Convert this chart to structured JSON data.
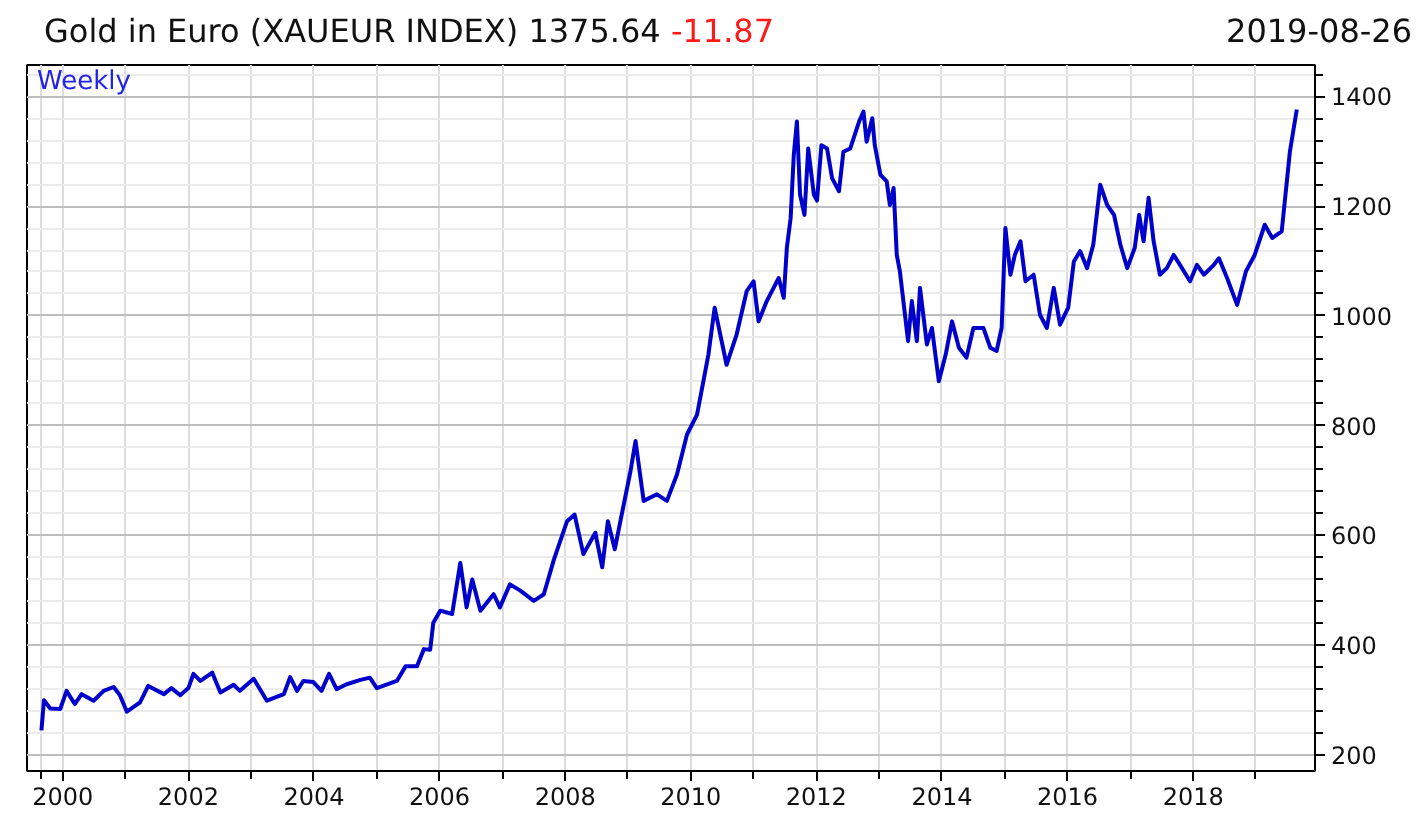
{
  "chart_data": {
    "type": "line",
    "title": "Gold in Euro (XAUEUR INDEX) 1375.64",
    "annotations": [
      "-11.87",
      "2019-08-26",
      "Weekly"
    ],
    "x": [
      1999.66,
      1999.7,
      1999.8,
      1999.96,
      2000.06,
      2000.19,
      2000.3,
      2000.49,
      2000.65,
      2000.81,
      2000.91,
      2001.02,
      2001.23,
      2001.36,
      2001.61,
      2001.73,
      2001.87,
      2002.0,
      2002.08,
      2002.19,
      2002.38,
      2002.51,
      2002.72,
      2002.82,
      2003.04,
      2003.25,
      2003.52,
      2003.62,
      2003.73,
      2003.83,
      2003.99,
      2004.12,
      2004.24,
      2004.36,
      2004.52,
      2004.74,
      2004.89,
      2005.0,
      2005.32,
      2005.46,
      2005.64,
      2005.75,
      2005.85,
      2005.9,
      2006.01,
      2006.2,
      2006.33,
      2006.43,
      2006.52,
      2006.65,
      2006.86,
      2006.96,
      2007.12,
      2007.28,
      2007.5,
      2007.66,
      2007.82,
      2008.03,
      2008.15,
      2008.29,
      2008.48,
      2008.59,
      2008.68,
      2008.79,
      2008.9,
      2009.04,
      2009.12,
      2009.25,
      2009.46,
      2009.62,
      2009.78,
      2009.94,
      2010.1,
      2010.28,
      2010.38,
      2010.57,
      2010.73,
      2010.89,
      2011.0,
      2011.08,
      2011.21,
      2011.4,
      2011.48,
      2011.53,
      2011.59,
      2011.64,
      2011.69,
      2011.74,
      2011.81,
      2011.87,
      2011.96,
      2012.01,
      2012.08,
      2012.17,
      2012.25,
      2012.36,
      2012.43,
      2012.54,
      2012.68,
      2012.75,
      2012.8,
      2012.89,
      2012.93,
      2013.02,
      2013.12,
      2013.17,
      2013.23,
      2013.28,
      2013.33,
      2013.46,
      2013.52,
      2013.6,
      2013.65,
      2013.76,
      2013.84,
      2013.95,
      2014.06,
      2014.16,
      2014.27,
      2014.39,
      2014.5,
      2014.66,
      2014.77,
      2014.87,
      2014.95,
      2015.01,
      2015.09,
      2015.16,
      2015.25,
      2015.33,
      2015.46,
      2015.56,
      2015.67,
      2015.78,
      2015.88,
      2016.01,
      2016.1,
      2016.2,
      2016.31,
      2016.41,
      2016.52,
      2016.63,
      2016.74,
      2016.84,
      2016.95,
      2017.07,
      2017.14,
      2017.21,
      2017.29,
      2017.37,
      2017.47,
      2017.58,
      2017.69,
      2017.79,
      2017.95,
      2018.06,
      2018.17,
      2018.33,
      2018.41,
      2018.54,
      2018.7,
      2018.84,
      2018.98,
      2019.14,
      2019.26,
      2019.41,
      2019.54,
      2019.65
    ],
    "series": [
      {
        "color": "#0000cc",
        "values": [
          245,
          300,
          285,
          284,
          317,
          293,
          311,
          299,
          317,
          324,
          309,
          279,
          296,
          326,
          311,
          322,
          309,
          322,
          348,
          335,
          350,
          314,
          328,
          317,
          339,
          299,
          311,
          342,
          317,
          335,
          333,
          317,
          348,
          320,
          329,
          337,
          341,
          322,
          335,
          362,
          362,
          393,
          392,
          441,
          463,
          457,
          550,
          469,
          520,
          463,
          493,
          469,
          511,
          500,
          481,
          493,
          556,
          626,
          638,
          566,
          605,
          542,
          626,
          575,
          638,
          717,
          772,
          663,
          675,
          663,
          711,
          784,
          820,
          929,
          1015,
          911,
          966,
          1045,
          1063,
          990,
          1027,
          1069,
          1033,
          1124,
          1178,
          1293,
          1354,
          1221,
          1184,
          1305,
          1221,
          1210,
          1311,
          1305,
          1251,
          1227,
          1299,
          1305,
          1354,
          1372,
          1317,
          1360,
          1311,
          1257,
          1245,
          1202,
          1233,
          1111,
          1081,
          954,
          1027,
          954,
          1051,
          948,
          978,
          881,
          930,
          990,
          942,
          924,
          978,
          978,
          942,
          936,
          978,
          1160,
          1075,
          1111,
          1136,
          1063,
          1075,
          1002,
          978,
          1051,
          984,
          1015,
          1099,
          1118,
          1087,
          1130,
          1239,
          1202,
          1184,
          1130,
          1087,
          1124,
          1184,
          1136,
          1215,
          1136,
          1075,
          1087,
          1111,
          1093,
          1063,
          1093,
          1075,
          1093,
          1105,
          1069,
          1020,
          1081,
          1111,
          1166,
          1142,
          1154,
          1299,
          1376
        ]
      }
    ],
    "xlim": [
      1999.43,
      2019.94
    ],
    "ylim": [
      171,
      1457
    ],
    "xticks": [
      {
        "value": 1999.66,
        "label": null
      },
      2000,
      {
        "value": 2001,
        "label": null
      },
      2002,
      {
        "value": 2003,
        "label": null
      },
      2004,
      {
        "value": 2005,
        "label": null
      },
      2006,
      {
        "value": 2007,
        "label": null
      },
      2008,
      {
        "value": 2009,
        "label": null
      },
      2010,
      {
        "value": 2011,
        "label": null
      },
      2012,
      {
        "value": 2013,
        "label": null
      },
      2014,
      {
        "value": 2015,
        "label": null
      },
      2016,
      {
        "value": 2017,
        "label": null
      },
      2018,
      {
        "value": 2019,
        "label": null
      }
    ],
    "yticks": [
      200,
      {
        "value": 240,
        "label": null
      },
      {
        "value": 280,
        "label": null
      },
      {
        "value": 320,
        "label": null
      },
      {
        "value": 360,
        "label": null
      },
      400,
      {
        "value": 440,
        "label": null
      },
      {
        "value": 480,
        "label": null
      },
      {
        "value": 520,
        "label": null
      },
      {
        "value": 560,
        "label": null
      },
      600,
      {
        "value": 640,
        "label": null
      },
      {
        "value": 680,
        "label": null
      },
      {
        "value": 720,
        "label": null
      },
      {
        "value": 760,
        "label": null
      },
      800,
      {
        "value": 840,
        "label": null
      },
      {
        "value": 880,
        "label": null
      },
      {
        "value": 920,
        "label": null
      },
      {
        "value": 960,
        "label": null
      },
      1000,
      {
        "value": 1040,
        "label": null
      },
      {
        "value": 1080,
        "label": null
      },
      {
        "value": 1120,
        "label": null
      },
      {
        "value": 1160,
        "label": null
      },
      1200,
      {
        "value": 1240,
        "label": null
      },
      {
        "value": 1280,
        "label": null
      },
      {
        "value": 1320,
        "label": null
      },
      {
        "value": 1360,
        "label": null
      },
      1400,
      {
        "value": 1440,
        "label": null
      }
    ],
    "grid": true
  }
}
